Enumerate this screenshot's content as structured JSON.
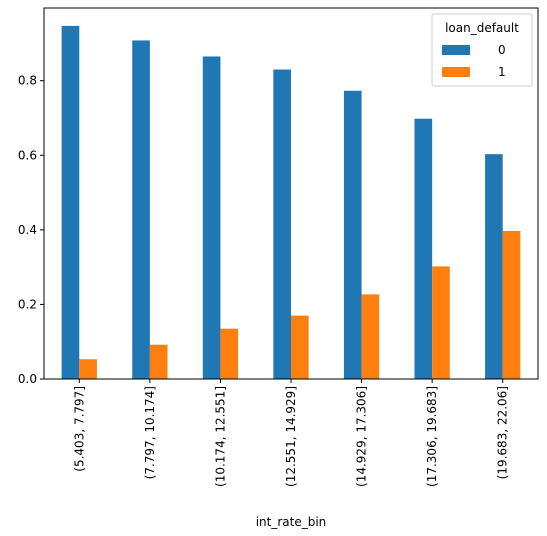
{
  "chart_data": {
    "type": "bar",
    "categories": [
      "(5.403, 7.797]",
      "(7.797, 10.174]",
      "(10.174, 12.551]",
      "(12.551, 14.929]",
      "(14.929, 17.306]",
      "(17.306, 19.683]",
      "(19.683, 22.06]"
    ],
    "series": [
      {
        "name": "0",
        "values": [
          0.947,
          0.908,
          0.865,
          0.83,
          0.773,
          0.698,
          0.603
        ]
      },
      {
        "name": "1",
        "values": [
          0.053,
          0.092,
          0.135,
          0.17,
          0.227,
          0.302,
          0.397
        ]
      }
    ],
    "colors": [
      "#1f77b4",
      "#ff7f0e"
    ],
    "title": "",
    "xlabel": "int_rate_bin",
    "ylabel": "",
    "ylim": [
      0,
      0.995
    ],
    "yticks": [
      0.0,
      0.2,
      0.4,
      0.6,
      0.8
    ],
    "ytick_labels": [
      "0.0",
      "0.2",
      "0.4",
      "0.6",
      "0.8"
    ],
    "legend": {
      "title": "loan_default",
      "placement": "top-right"
    },
    "grid": false
  }
}
